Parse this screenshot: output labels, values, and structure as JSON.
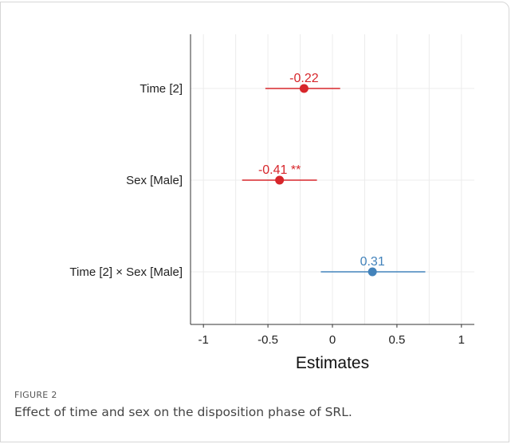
{
  "figure": {
    "label": "FIGURE 2",
    "caption": "Effect of time and sex on the disposition phase of SRL."
  },
  "colors": {
    "negative": "#d7262b",
    "positive": "#4383bb",
    "grid": "#ececec",
    "axis": "#333333"
  },
  "chart_data": {
    "type": "scatter",
    "subtype": "forest-plot",
    "xlabel": "Estimates",
    "xlim": [
      -1.1,
      1.1
    ],
    "xticks": [
      -1,
      -0.5,
      0,
      0.5,
      1
    ],
    "xtick_labels": [
      "-1",
      "-0.5",
      "0",
      "0.5",
      "1"
    ],
    "grid": true,
    "terms": [
      {
        "term": "Time [2]",
        "estimate": -0.22,
        "ci_low": -0.52,
        "ci_high": 0.06,
        "label": "-0.22",
        "sign": "negative"
      },
      {
        "term": "Sex [Male]",
        "estimate": -0.41,
        "ci_low": -0.7,
        "ci_high": -0.12,
        "label": "-0.41 **",
        "sign": "negative"
      },
      {
        "term": "Time [2] × Sex [Male]",
        "estimate": 0.31,
        "ci_low": -0.09,
        "ci_high": 0.72,
        "label": "0.31",
        "sign": "positive"
      }
    ]
  }
}
